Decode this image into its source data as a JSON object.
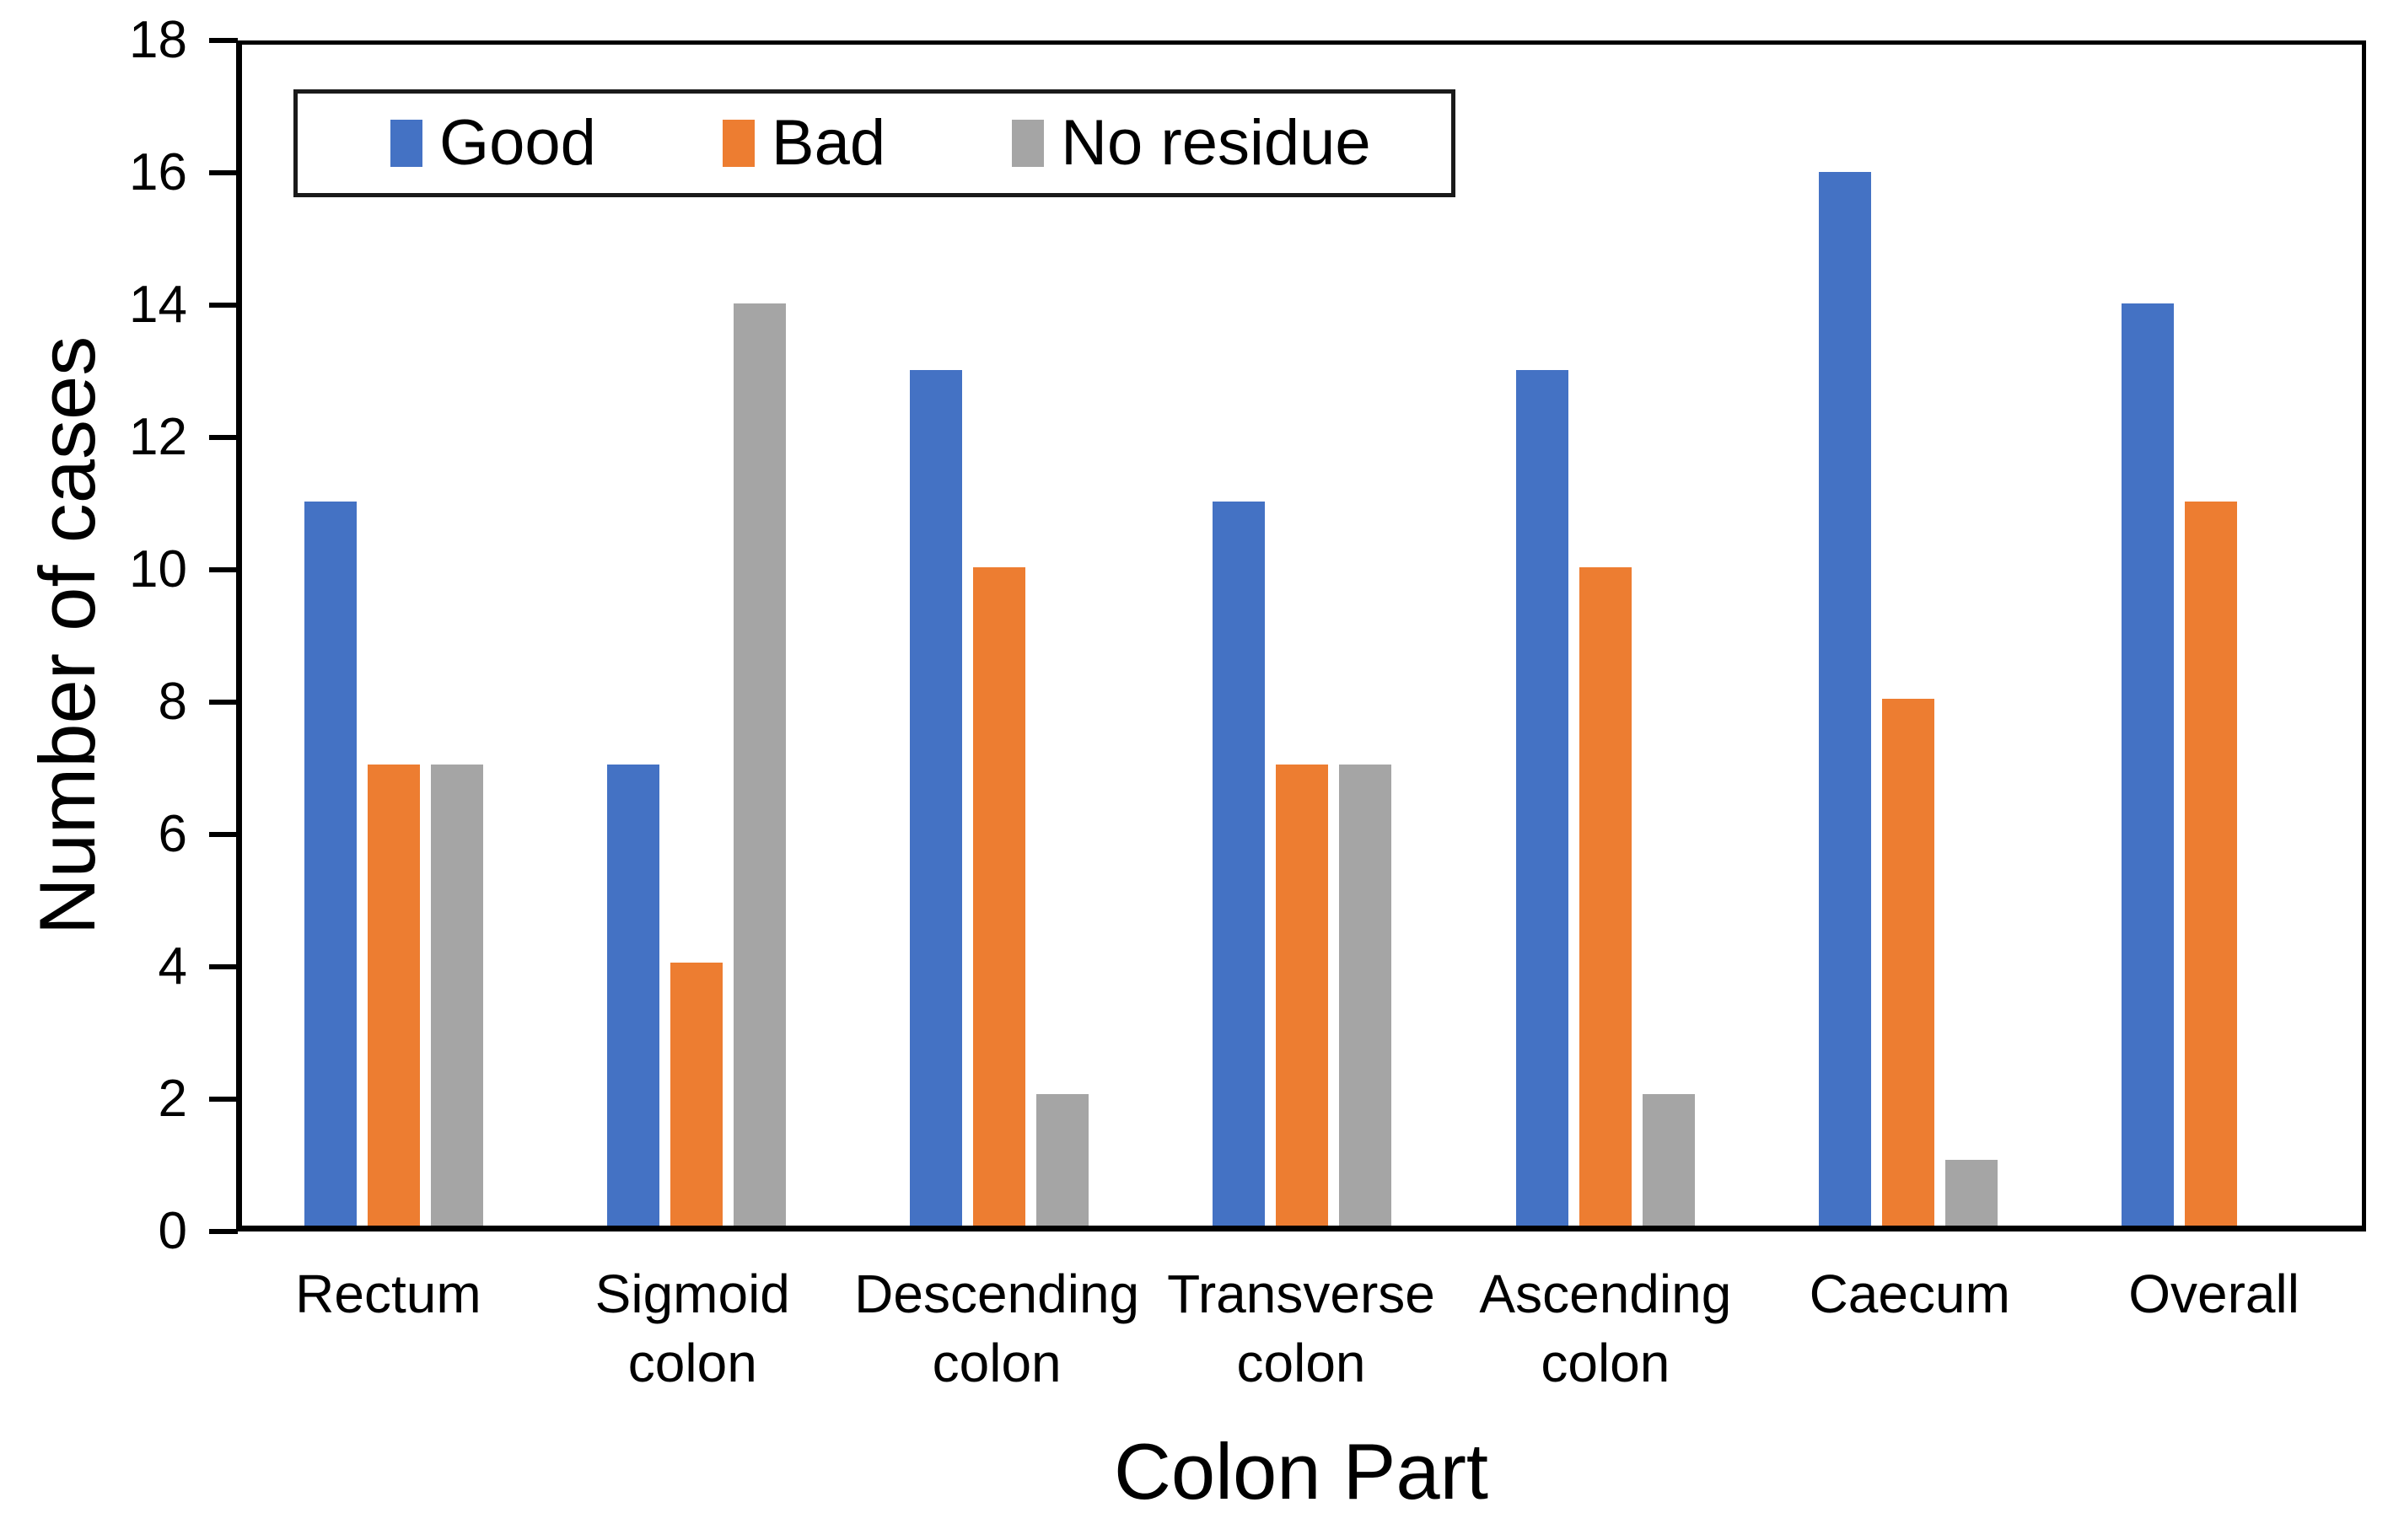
{
  "chart_data": {
    "type": "bar",
    "title": "",
    "xlabel": "Colon Part",
    "ylabel": "Number of cases",
    "categories": [
      "Rectum",
      "Sigmoid colon",
      "Descending colon",
      "Transverse colon",
      "Ascending colon",
      "Caecum",
      "Overall"
    ],
    "series": [
      {
        "name": "Good",
        "color": "#4472C4",
        "values": [
          11,
          7,
          13,
          11,
          13,
          16,
          14
        ]
      },
      {
        "name": "Bad",
        "color": "#ED7D31",
        "values": [
          7,
          4,
          10,
          7,
          10,
          8,
          11
        ]
      },
      {
        "name": "No residue",
        "color": "#A5A5A5",
        "values": [
          7,
          14,
          2,
          7,
          2,
          1,
          0
        ]
      }
    ],
    "ylim": [
      0,
      18
    ],
    "y_ticks": [
      0,
      2,
      4,
      6,
      8,
      10,
      12,
      14,
      16,
      18
    ],
    "grid": false,
    "legend_position": "top-left-inside",
    "colors": {
      "axis": "#000000",
      "background": "#FFFFFF",
      "text": "#000000"
    }
  }
}
